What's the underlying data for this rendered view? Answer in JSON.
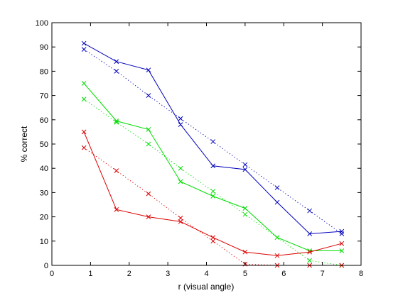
{
  "chart_data": {
    "type": "line",
    "title": "",
    "xlabel": "r (visual angle)",
    "ylabel": "% correct",
    "xlim": [
      0,
      8
    ],
    "ylim": [
      0,
      100
    ],
    "xticks": [
      0,
      1,
      2,
      3,
      4,
      5,
      6,
      7,
      8
    ],
    "yticks": [
      0,
      10,
      20,
      30,
      40,
      50,
      60,
      70,
      80,
      90,
      100
    ],
    "grid": false,
    "legend": "none",
    "marker": "x",
    "series": [
      {
        "color": "#0000bb",
        "line_style": "solid",
        "x": [
          0.83,
          1.67,
          2.5,
          3.33,
          4.17,
          5.0,
          5.83,
          6.67,
          7.5
        ],
        "y": [
          91.5,
          84,
          80.5,
          58,
          41,
          39.5,
          26,
          13,
          14
        ]
      },
      {
        "color": "#0000bb",
        "line_style": "dotted",
        "x": [
          0.83,
          1.67,
          2.5,
          3.33,
          4.17,
          5.0,
          5.83,
          6.67,
          7.5
        ],
        "y": [
          89,
          80,
          70,
          60.5,
          51,
          41.5,
          32,
          22.5,
          13
        ]
      },
      {
        "color": "#00dd00",
        "line_style": "solid",
        "x": [
          0.83,
          1.67,
          2.5,
          3.33,
          4.17,
          5.0,
          5.83,
          6.67,
          7.5
        ],
        "y": [
          75,
          59.5,
          56,
          34.5,
          28.5,
          23.5,
          11.5,
          6,
          6
        ]
      },
      {
        "color": "#00dd00",
        "line_style": "dotted",
        "x": [
          0.83,
          1.67,
          2.5,
          3.33,
          4.17,
          5.0,
          5.83,
          6.67,
          7.5
        ],
        "y": [
          68.5,
          59,
          50,
          40,
          30.5,
          21,
          11.5,
          2,
          0
        ]
      },
      {
        "color": "#dd0000",
        "line_style": "solid",
        "x": [
          0.83,
          1.67,
          2.5,
          3.33,
          4.17,
          5.0,
          5.83,
          6.67,
          7.5
        ],
        "y": [
          55,
          23,
          20,
          18,
          11.5,
          5.5,
          4,
          5.5,
          9
        ]
      },
      {
        "color": "#dd0000",
        "line_style": "dotted",
        "x": [
          0.83,
          1.67,
          2.5,
          3.33,
          4.17,
          5.0,
          5.83,
          6.67,
          7.5
        ],
        "y": [
          48.5,
          39,
          29.5,
          19.5,
          10,
          0.5,
          0,
          0,
          0
        ]
      }
    ]
  }
}
